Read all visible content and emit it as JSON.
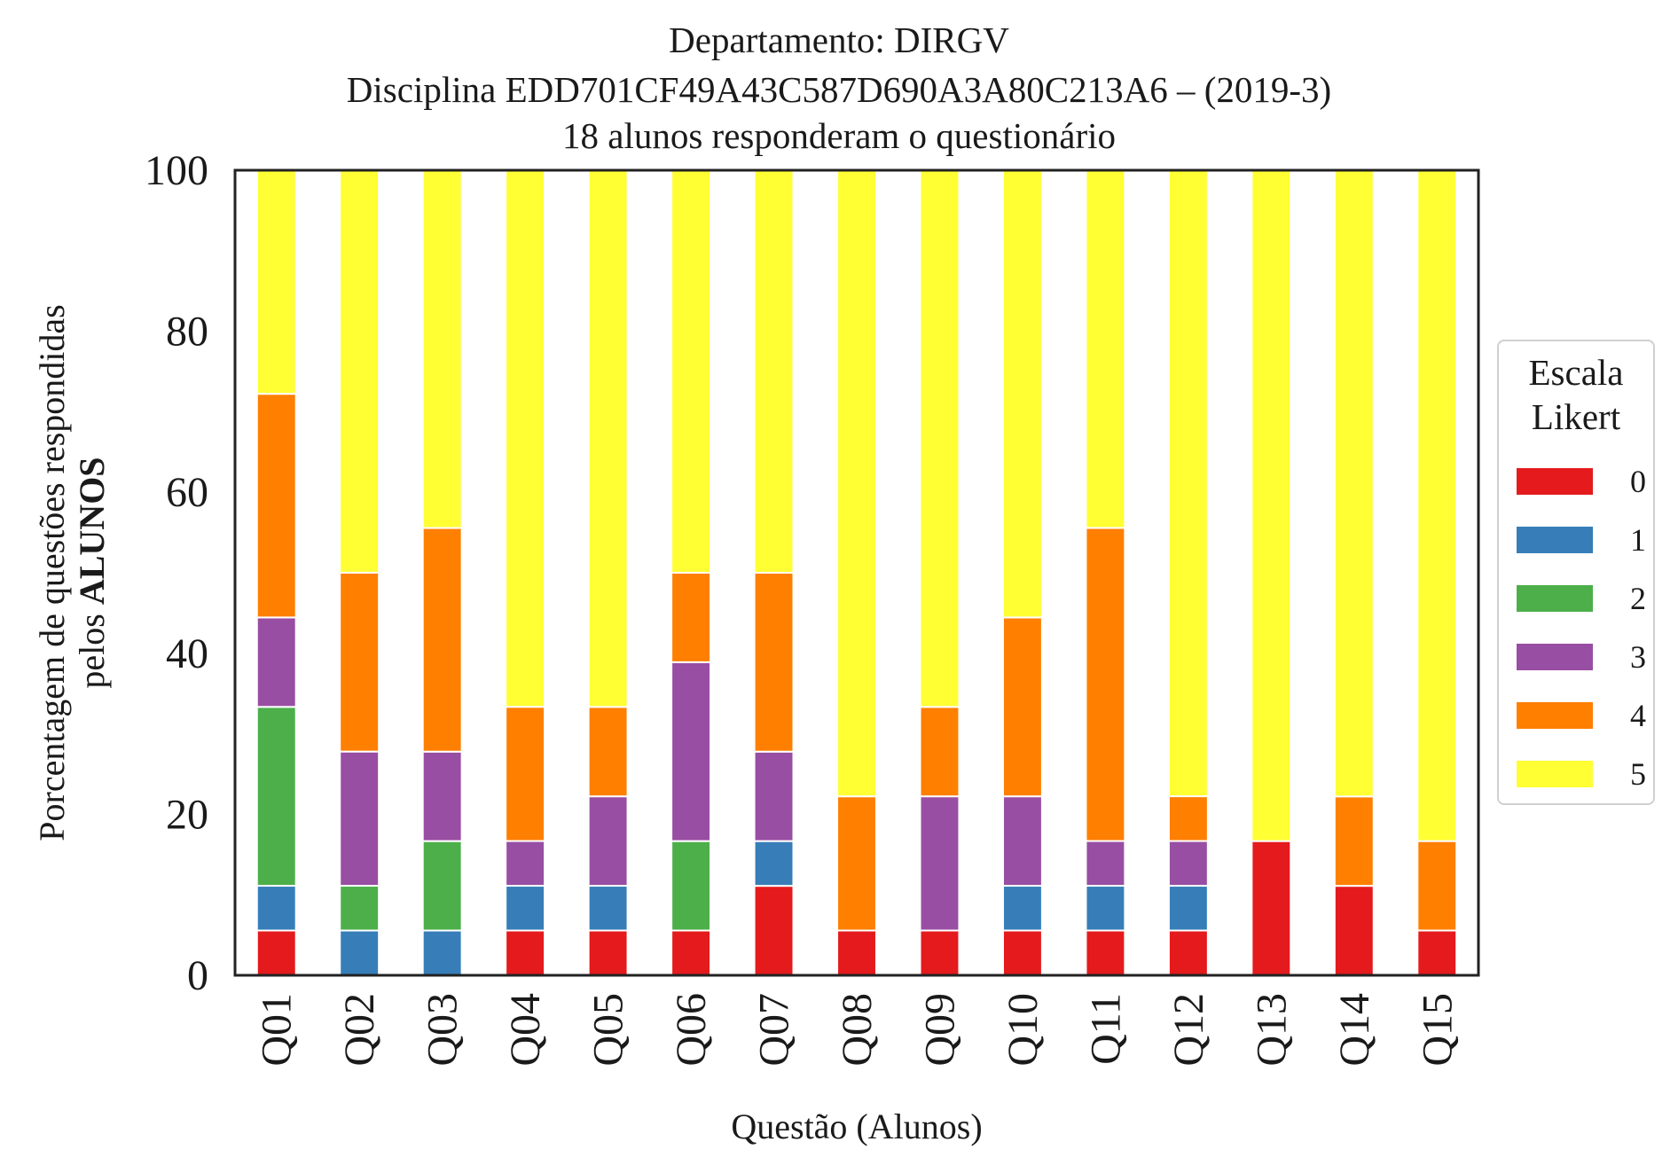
{
  "chart_data": {
    "type": "bar",
    "stacked": true,
    "title_lines": [
      "Departamento: DIRGV",
      "Disciplina EDD701CF49A43C587D690A3A80C213A6 – (2019-3)",
      "18 alunos responderam o questionário"
    ],
    "xlabel": "Questão (Alunos)",
    "ylabel_line1": "Porcentagem de questões respondidas",
    "ylabel_line2_prefix": "pelos ",
    "ylabel_line2_bold": "ALUNOS",
    "ylim": [
      0,
      100
    ],
    "yticks": [
      "0",
      "20",
      "40",
      "60",
      "80",
      "100"
    ],
    "grid": false,
    "legend": {
      "title_line1": "Escala",
      "title_line2": "Likert",
      "position": "right"
    },
    "categories": [
      "Q01",
      "Q02",
      "Q03",
      "Q04",
      "Q05",
      "Q06",
      "Q07",
      "Q08",
      "Q09",
      "Q10",
      "Q11",
      "Q12",
      "Q13",
      "Q14",
      "Q15"
    ],
    "series": [
      {
        "name": "0",
        "color": "#e41a1c",
        "values": [
          5.56,
          0,
          0,
          5.56,
          5.56,
          5.56,
          11.11,
          5.56,
          5.56,
          5.56,
          5.56,
          5.56,
          16.67,
          11.11,
          5.56
        ]
      },
      {
        "name": "1",
        "color": "#377eb8",
        "values": [
          5.56,
          5.56,
          5.56,
          5.56,
          5.56,
          0,
          5.56,
          0,
          0,
          5.56,
          5.56,
          5.56,
          0,
          0,
          0
        ]
      },
      {
        "name": "2",
        "color": "#4daf4a",
        "values": [
          22.22,
          5.56,
          11.11,
          0,
          0,
          11.11,
          0,
          0,
          0,
          0,
          0,
          0,
          0,
          0,
          0
        ]
      },
      {
        "name": "3",
        "color": "#984ea3",
        "values": [
          11.11,
          16.67,
          11.11,
          5.56,
          11.11,
          22.22,
          11.11,
          0,
          16.67,
          11.11,
          5.56,
          5.56,
          0,
          0,
          0
        ]
      },
      {
        "name": "4",
        "color": "#ff7f00",
        "values": [
          27.78,
          22.22,
          27.78,
          16.67,
          11.11,
          11.11,
          22.22,
          16.67,
          11.11,
          22.22,
          38.89,
          5.56,
          0,
          11.11,
          11.11
        ]
      },
      {
        "name": "5",
        "color": "#ffff33",
        "values": [
          27.78,
          50.0,
          44.44,
          66.67,
          66.67,
          50.0,
          50.0,
          77.78,
          66.67,
          55.56,
          44.44,
          77.78,
          83.33,
          77.78,
          83.33
        ]
      }
    ]
  }
}
